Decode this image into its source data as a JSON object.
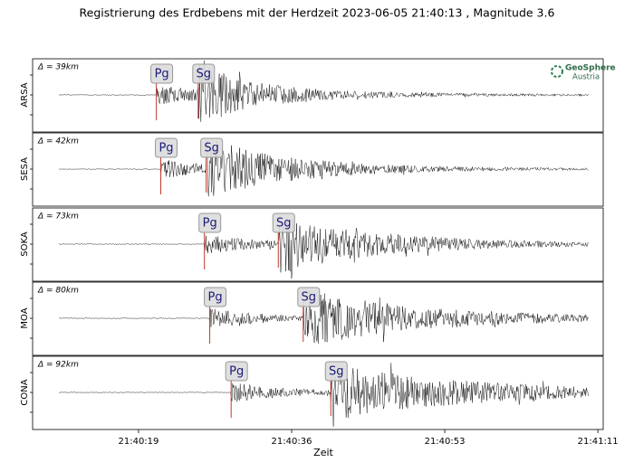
{
  "chart_data": {
    "type": "line",
    "title": "Registrierung des Erdbebens mit der Herdzeit 2023-06-05 21:40:13 , Magnitude 3.6",
    "xlabel": "Zeit",
    "logo": [
      "GeoSphere",
      "Austria"
    ],
    "xlim": [
      7.3,
      71.4
    ],
    "xticks": [
      {
        "value": 19.2,
        "label": "21:40:19"
      },
      {
        "value": 36.4,
        "label": "21:40:36"
      },
      {
        "value": 53.6,
        "label": "21:40:53"
      },
      {
        "value": 70.8,
        "label": "21:41:11"
      }
    ],
    "stations": [
      {
        "name": "ARSA",
        "distance": "Δ = 39km",
        "picks": [
          {
            "label": "Pg",
            "x": 21.2
          },
          {
            "label": "Sg",
            "x": 25.9
          }
        ]
      },
      {
        "name": "SESA",
        "distance": "Δ = 42km",
        "picks": [
          {
            "label": "Pg",
            "x": 21.7
          },
          {
            "label": "Sg",
            "x": 26.8
          }
        ]
      },
      {
        "name": "SOKA",
        "distance": "Δ = 73km",
        "picks": [
          {
            "label": "Pg",
            "x": 26.6
          },
          {
            "label": "Sg",
            "x": 34.9
          }
        ]
      },
      {
        "name": "MOA",
        "distance": "Δ = 80km",
        "picks": [
          {
            "label": "Pg",
            "x": 27.2
          },
          {
            "label": "Sg",
            "x": 37.7
          }
        ]
      },
      {
        "name": "CONA",
        "distance": "Δ = 92km",
        "picks": [
          {
            "label": "Pg",
            "x": 29.6
          },
          {
            "label": "Sg",
            "x": 40.8
          }
        ]
      }
    ],
    "pick_color": "#c0392b"
  }
}
